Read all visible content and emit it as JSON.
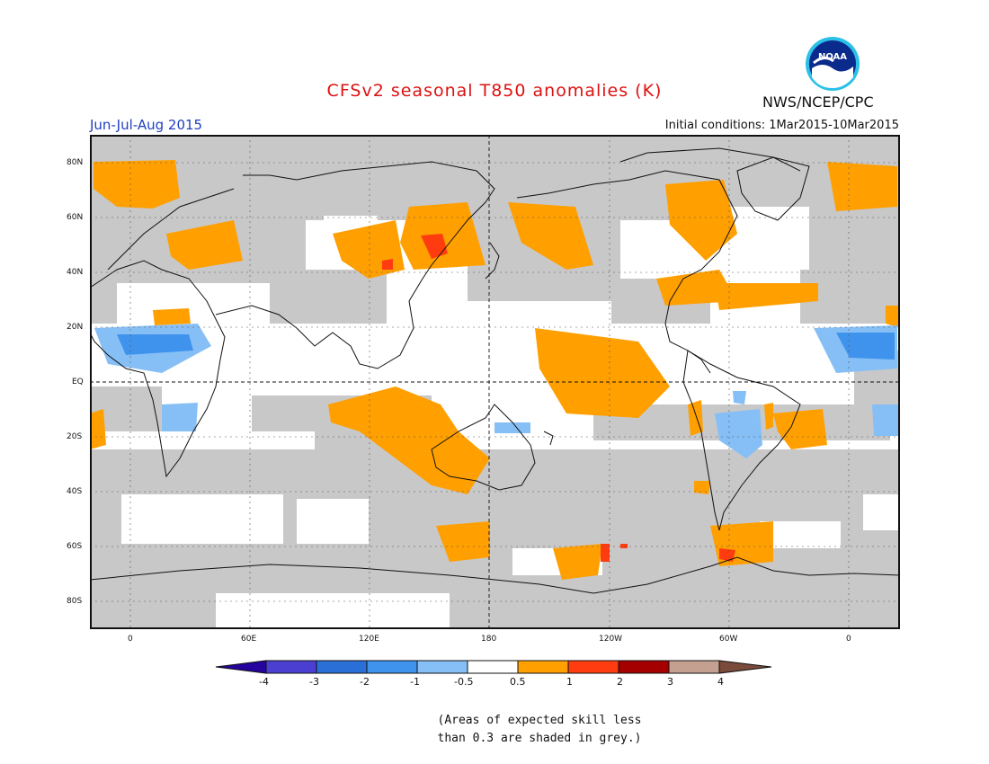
{
  "title": "CFSv2 seasonal T850 anomalies (K)",
  "season": "Jun-Jul-Aug 2015",
  "initial_conditions": "Initial conditions: 1Mar2015-10Mar2015",
  "agency": "NWS/NCEP/CPC",
  "logo": {
    "text": "NOAA",
    "icon": "noaa-logo-icon"
  },
  "lat_labels": [
    "80N",
    "60N",
    "40N",
    "20N",
    "EQ",
    "20S",
    "40S",
    "60S",
    "80S"
  ],
  "lon_labels": [
    "0",
    "60E",
    "120E",
    "180",
    "120W",
    "60W",
    "0"
  ],
  "colorbar": {
    "labels": [
      "-4",
      "-3",
      "-2",
      "-1",
      "-0.5",
      "0.5",
      "1",
      "2",
      "3",
      "4"
    ],
    "colors": [
      "#24049c",
      "#4a3fd0",
      "#2a6fd8",
      "#3f93ec",
      "#86bff5",
      "#ffffff",
      "#ff9f00",
      "#ff3c0f",
      "#a40000",
      "#c4a090",
      "#7a4a3a"
    ]
  },
  "skill_shading_color": "#c8c8c8",
  "note_line1": "(Areas of expected skill less",
  "note_line2": "than 0.3 are shaded in grey.)"
}
